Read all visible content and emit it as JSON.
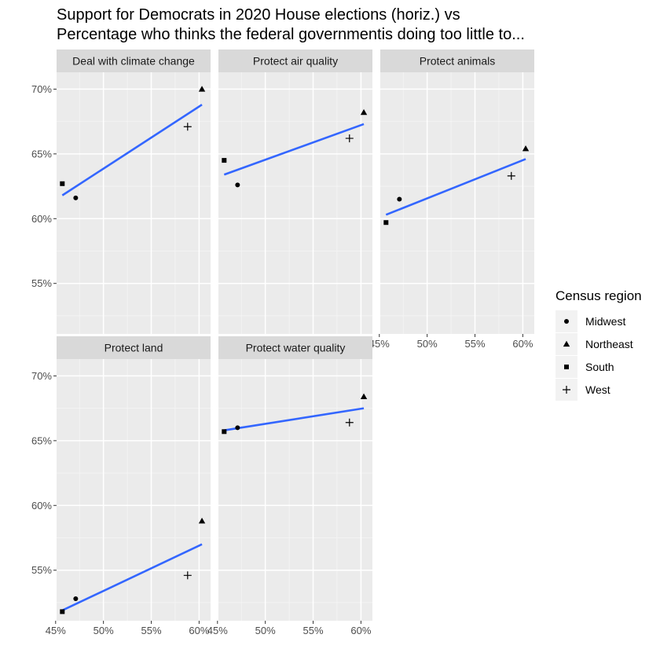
{
  "title_lines": [
    "Support for Democrats in 2020 House elections (horiz.) vs",
    "Percentage who thinks the federal governmentis doing too little to..."
  ],
  "chart_data": {
    "type": "scatter",
    "facet": true,
    "x_ticks": [
      {
        "value": 45,
        "label": "45%"
      },
      {
        "value": 50,
        "label": "50%"
      },
      {
        "value": 55,
        "label": "55%"
      },
      {
        "value": 60,
        "label": "60%"
      }
    ],
    "y_ticks": [
      {
        "value": 55,
        "label": "55%"
      },
      {
        "value": 60,
        "label": "60%"
      },
      {
        "value": 65,
        "label": "65%"
      },
      {
        "value": 70,
        "label": "70%"
      }
    ],
    "xlim": [
      45.1,
      61.2
    ],
    "ylim": [
      51.1,
      71.3
    ],
    "grid": true,
    "trend_color": "#3366ff",
    "panel_background": "#ebebeb",
    "strip_background": "#d9d9d9",
    "legend": {
      "title": "Census region",
      "placement": "right",
      "entries": [
        {
          "label": "Midwest",
          "shape": "circle"
        },
        {
          "label": "Northeast",
          "shape": "triangle"
        },
        {
          "label": "South",
          "shape": "square"
        },
        {
          "label": "West",
          "shape": "plus"
        }
      ]
    },
    "panels": [
      {
        "label": "Deal with climate change",
        "points": [
          {
            "region": "Midwest",
            "x": 47.1,
            "y": 61.6
          },
          {
            "region": "Northeast",
            "x": 60.3,
            "y": 70.0
          },
          {
            "region": "South",
            "x": 45.7,
            "y": 62.7
          },
          {
            "region": "West",
            "x": 58.8,
            "y": 67.1
          }
        ],
        "trend": [
          {
            "x": 45.7,
            "y": 61.8
          },
          {
            "x": 60.3,
            "y": 68.8
          }
        ]
      },
      {
        "label": "Protect air quality",
        "points": [
          {
            "region": "Midwest",
            "x": 47.1,
            "y": 62.6
          },
          {
            "region": "Northeast",
            "x": 60.3,
            "y": 68.2
          },
          {
            "region": "South",
            "x": 45.7,
            "y": 64.5
          },
          {
            "region": "West",
            "x": 58.8,
            "y": 66.2
          }
        ],
        "trend": [
          {
            "x": 45.7,
            "y": 63.4
          },
          {
            "x": 60.3,
            "y": 67.3
          }
        ]
      },
      {
        "label": "Protect animals",
        "points": [
          {
            "region": "Midwest",
            "x": 47.1,
            "y": 61.5
          },
          {
            "region": "Northeast",
            "x": 60.3,
            "y": 65.4
          },
          {
            "region": "South",
            "x": 45.7,
            "y": 59.7
          },
          {
            "region": "West",
            "x": 58.8,
            "y": 63.3
          }
        ],
        "trend": [
          {
            "x": 45.7,
            "y": 60.3
          },
          {
            "x": 60.3,
            "y": 64.6
          }
        ]
      },
      {
        "label": "Protect land",
        "points": [
          {
            "region": "Midwest",
            "x": 47.1,
            "y": 52.8
          },
          {
            "region": "Northeast",
            "x": 60.3,
            "y": 58.8
          },
          {
            "region": "South",
            "x": 45.7,
            "y": 51.8
          },
          {
            "region": "West",
            "x": 58.8,
            "y": 54.6
          }
        ],
        "trend": [
          {
            "x": 45.7,
            "y": 51.9
          },
          {
            "x": 60.3,
            "y": 57.0
          }
        ]
      },
      {
        "label": "Protect water quality",
        "points": [
          {
            "region": "Midwest",
            "x": 47.1,
            "y": 66.0
          },
          {
            "region": "Northeast",
            "x": 60.3,
            "y": 68.4
          },
          {
            "region": "South",
            "x": 45.7,
            "y": 65.7
          },
          {
            "region": "West",
            "x": 58.8,
            "y": 66.4
          }
        ],
        "trend": [
          {
            "x": 45.7,
            "y": 65.8
          },
          {
            "x": 60.3,
            "y": 67.5
          }
        ]
      }
    ]
  }
}
